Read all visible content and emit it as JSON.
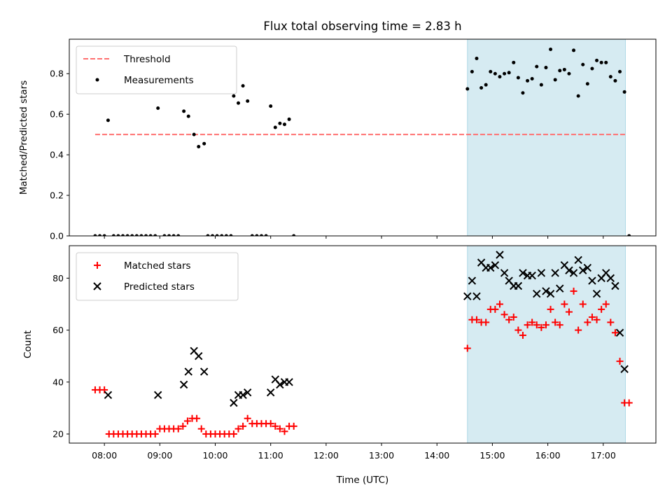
{
  "chart_data": [
    {
      "type": "scatter",
      "title": "Flux total observing time = 2.83 h",
      "xlabel": "",
      "ylabel": "Matched/Predicted stars",
      "xlim": [
        "07:22",
        "17:57"
      ],
      "ylim": [
        0,
        0.97
      ],
      "yticks": [
        "0.0",
        "0.2",
        "0.4",
        "0.6",
        "0.8"
      ],
      "ytick_values": [
        0,
        0.2,
        0.4,
        0.6,
        0.8
      ],
      "legend_placement": "upper left",
      "highlight_span": {
        "from": "14:33",
        "to": "17:24",
        "color": "#add8e6"
      },
      "threshold": {
        "name": "Threshold",
        "value": 0.5,
        "from": "07:50",
        "to": "17:24",
        "color": "#ff7070",
        "style": "dashed"
      },
      "series": [
        {
          "name": "Measurements",
          "color": "#000000",
          "marker": "dot",
          "points": [
            [
              "07:50",
              0
            ],
            [
              "07:55",
              0
            ],
            [
              "08:00",
              0
            ],
            [
              "08:04",
              0.57
            ],
            [
              "08:10",
              0
            ],
            [
              "08:15",
              0
            ],
            [
              "08:20",
              0
            ],
            [
              "08:25",
              0
            ],
            [
              "08:30",
              0
            ],
            [
              "08:35",
              0
            ],
            [
              "08:40",
              0
            ],
            [
              "08:45",
              0
            ],
            [
              "08:50",
              0
            ],
            [
              "08:55",
              0
            ],
            [
              "08:58",
              0.63
            ],
            [
              "09:05",
              0
            ],
            [
              "09:10",
              0
            ],
            [
              "09:15",
              0
            ],
            [
              "09:20",
              0
            ],
            [
              "09:26",
              0.615
            ],
            [
              "09:31",
              0.59
            ],
            [
              "09:37",
              0.5
            ],
            [
              "09:42",
              0.44
            ],
            [
              "09:48",
              0.455
            ],
            [
              "09:52",
              0
            ],
            [
              "09:57",
              0
            ],
            [
              "10:02",
              0
            ],
            [
              "10:07",
              0
            ],
            [
              "10:12",
              0
            ],
            [
              "10:17",
              0
            ],
            [
              "10:20",
              0.69
            ],
            [
              "10:25",
              0.655
            ],
            [
              "10:30",
              0.74
            ],
            [
              "10:35",
              0.665
            ],
            [
              "10:40",
              0
            ],
            [
              "10:45",
              0
            ],
            [
              "10:50",
              0
            ],
            [
              "10:55",
              0
            ],
            [
              "11:00",
              0.64
            ],
            [
              "11:05",
              0.535
            ],
            [
              "11:10",
              0.555
            ],
            [
              "11:15",
              0.55
            ],
            [
              "11:20",
              0.575
            ],
            [
              "11:25",
              0
            ],
            [
              "14:33",
              0.725
            ],
            [
              "14:38",
              0.81
            ],
            [
              "14:43",
              0.875
            ],
            [
              "14:48",
              0.73
            ],
            [
              "14:53",
              0.745
            ],
            [
              "14:58",
              0.81
            ],
            [
              "15:03",
              0.8
            ],
            [
              "15:08",
              0.785
            ],
            [
              "15:13",
              0.8
            ],
            [
              "15:18",
              0.805
            ],
            [
              "15:23",
              0.855
            ],
            [
              "15:28",
              0.78
            ],
            [
              "15:33",
              0.705
            ],
            [
              "15:38",
              0.765
            ],
            [
              "15:43",
              0.775
            ],
            [
              "15:48",
              0.835
            ],
            [
              "15:53",
              0.745
            ],
            [
              "15:58",
              0.83
            ],
            [
              "16:03",
              0.92
            ],
            [
              "16:08",
              0.77
            ],
            [
              "16:13",
              0.815
            ],
            [
              "16:18",
              0.82
            ],
            [
              "16:23",
              0.8
            ],
            [
              "16:28",
              0.915
            ],
            [
              "16:33",
              0.69
            ],
            [
              "16:38",
              0.845
            ],
            [
              "16:43",
              0.75
            ],
            [
              "16:48",
              0.825
            ],
            [
              "16:53",
              0.865
            ],
            [
              "16:58",
              0.855
            ],
            [
              "17:03",
              0.855
            ],
            [
              "17:08",
              0.785
            ],
            [
              "17:13",
              0.765
            ],
            [
              "17:18",
              0.81
            ],
            [
              "17:23",
              0.71
            ],
            [
              "17:28",
              0
            ]
          ]
        }
      ]
    },
    {
      "type": "scatter",
      "xlabel": "Time (UTC)",
      "ylabel": "Count",
      "xlim": [
        "07:22",
        "17:57"
      ],
      "ylim": [
        16.5,
        92.5
      ],
      "xticks": [
        "08:00",
        "09:00",
        "10:00",
        "11:00",
        "12:00",
        "13:00",
        "14:00",
        "15:00",
        "16:00",
        "17:00"
      ],
      "yticks": [
        "20",
        "40",
        "60",
        "80"
      ],
      "ytick_values": [
        20,
        40,
        60,
        80
      ],
      "legend_placement": "upper left",
      "highlight_span": {
        "from": "14:33",
        "to": "17:24",
        "color": "#add8e6"
      },
      "series": [
        {
          "name": "Matched stars",
          "color": "#ff0000",
          "marker": "plus",
          "points": [
            [
              "07:50",
              37
            ],
            [
              "07:55",
              37
            ],
            [
              "08:00",
              37
            ],
            [
              "08:05",
              20
            ],
            [
              "08:10",
              20
            ],
            [
              "08:15",
              20
            ],
            [
              "08:20",
              20
            ],
            [
              "08:25",
              20
            ],
            [
              "08:30",
              20
            ],
            [
              "08:35",
              20
            ],
            [
              "08:40",
              20
            ],
            [
              "08:45",
              20
            ],
            [
              "08:50",
              20
            ],
            [
              "08:55",
              20
            ],
            [
              "09:00",
              22
            ],
            [
              "09:05",
              22
            ],
            [
              "09:10",
              22
            ],
            [
              "09:15",
              22
            ],
            [
              "09:20",
              22
            ],
            [
              "09:25",
              23
            ],
            [
              "09:30",
              25
            ],
            [
              "09:35",
              26
            ],
            [
              "09:40",
              26
            ],
            [
              "09:45",
              22
            ],
            [
              "09:50",
              20
            ],
            [
              "09:55",
              20
            ],
            [
              "10:00",
              20
            ],
            [
              "10:05",
              20
            ],
            [
              "10:10",
              20
            ],
            [
              "10:15",
              20
            ],
            [
              "10:20",
              20
            ],
            [
              "10:25",
              22
            ],
            [
              "10:30",
              23
            ],
            [
              "10:35",
              26
            ],
            [
              "10:40",
              24
            ],
            [
              "10:45",
              24
            ],
            [
              "10:50",
              24
            ],
            [
              "10:55",
              24
            ],
            [
              "11:00",
              24
            ],
            [
              "11:05",
              23
            ],
            [
              "11:10",
              22
            ],
            [
              "11:15",
              21
            ],
            [
              "11:20",
              23
            ],
            [
              "11:25",
              23
            ],
            [
              "14:33",
              53
            ],
            [
              "14:38",
              64
            ],
            [
              "14:43",
              64
            ],
            [
              "14:48",
              63
            ],
            [
              "14:53",
              63
            ],
            [
              "14:58",
              68
            ],
            [
              "15:03",
              68
            ],
            [
              "15:08",
              70
            ],
            [
              "15:13",
              66
            ],
            [
              "15:18",
              64
            ],
            [
              "15:23",
              65
            ],
            [
              "15:28",
              60
            ],
            [
              "15:33",
              58
            ],
            [
              "15:38",
              62
            ],
            [
              "15:43",
              63
            ],
            [
              "15:48",
              62
            ],
            [
              "15:53",
              61
            ],
            [
              "15:58",
              62
            ],
            [
              "16:03",
              68
            ],
            [
              "16:08",
              63
            ],
            [
              "16:13",
              62
            ],
            [
              "16:18",
              70
            ],
            [
              "16:23",
              67
            ],
            [
              "16:28",
              75
            ],
            [
              "16:33",
              60
            ],
            [
              "16:38",
              70
            ],
            [
              "16:43",
              63
            ],
            [
              "16:48",
              65
            ],
            [
              "16:53",
              64
            ],
            [
              "16:58",
              68
            ],
            [
              "17:03",
              70
            ],
            [
              "17:08",
              63
            ],
            [
              "17:13",
              59
            ],
            [
              "17:18",
              48
            ],
            [
              "17:23",
              32
            ],
            [
              "17:28",
              32
            ]
          ]
        },
        {
          "name": "Predicted stars",
          "color": "#000000",
          "marker": "cross",
          "points": [
            [
              "08:04",
              35
            ],
            [
              "08:58",
              35
            ],
            [
              "09:26",
              39
            ],
            [
              "09:31",
              44
            ],
            [
              "09:37",
              52
            ],
            [
              "09:42",
              50
            ],
            [
              "09:48",
              44
            ],
            [
              "10:20",
              32
            ],
            [
              "10:25",
              35
            ],
            [
              "10:30",
              35
            ],
            [
              "10:35",
              36
            ],
            [
              "11:00",
              36
            ],
            [
              "11:05",
              41
            ],
            [
              "11:10",
              39
            ],
            [
              "11:15",
              40
            ],
            [
              "11:20",
              40
            ],
            [
              "14:33",
              73
            ],
            [
              "14:38",
              79
            ],
            [
              "14:43",
              73
            ],
            [
              "14:48",
              86
            ],
            [
              "14:53",
              84
            ],
            [
              "14:58",
              84
            ],
            [
              "15:03",
              85
            ],
            [
              "15:08",
              89
            ],
            [
              "15:13",
              82
            ],
            [
              "15:18",
              79
            ],
            [
              "15:23",
              77
            ],
            [
              "15:28",
              77
            ],
            [
              "15:33",
              82
            ],
            [
              "15:38",
              81
            ],
            [
              "15:43",
              81
            ],
            [
              "15:48",
              74
            ],
            [
              "15:53",
              82
            ],
            [
              "15:58",
              75
            ],
            [
              "16:03",
              74
            ],
            [
              "16:08",
              82
            ],
            [
              "16:13",
              76
            ],
            [
              "16:18",
              85
            ],
            [
              "16:23",
              83
            ],
            [
              "16:28",
              82
            ],
            [
              "16:33",
              87
            ],
            [
              "16:38",
              83
            ],
            [
              "16:43",
              84
            ],
            [
              "16:48",
              79
            ],
            [
              "16:53",
              74
            ],
            [
              "16:58",
              80
            ],
            [
              "17:03",
              82
            ],
            [
              "17:08",
              80
            ],
            [
              "17:13",
              77
            ],
            [
              "17:18",
              59
            ],
            [
              "17:23",
              45
            ]
          ]
        }
      ]
    }
  ]
}
